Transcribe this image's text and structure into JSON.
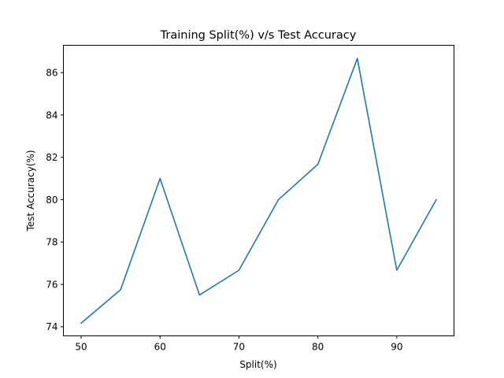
{
  "chart_data": {
    "type": "line",
    "title": "Training Split(%) v/s Test Accuracy",
    "xlabel": "Split(%)",
    "ylabel": "Test Accuracy(%)",
    "xlim": [
      47.75,
      97.25
    ],
    "ylim": [
      73.57,
      87.29
    ],
    "xticks": [
      50,
      60,
      70,
      80,
      90
    ],
    "yticks": [
      74,
      76,
      78,
      80,
      82,
      84,
      86
    ],
    "grid": false,
    "series": [
      {
        "color": "#1f77b4",
        "x": [
          50,
          55,
          60,
          65,
          70,
          75,
          80,
          85,
          90,
          95
        ],
        "y": [
          74.17,
          75.75,
          81.0,
          75.5,
          76.67,
          80.0,
          81.67,
          86.67,
          76.67,
          80.0
        ]
      }
    ]
  }
}
